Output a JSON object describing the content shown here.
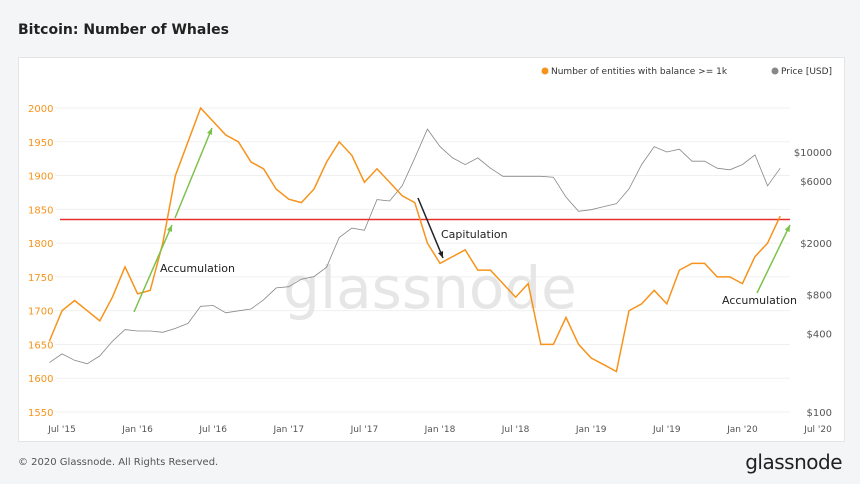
{
  "title": "Bitcoin: Number of Whales",
  "footer": "© 2020 Glassnode. All Rights Reserved.",
  "brand": "glassnode",
  "watermark": "glassnode",
  "colors": {
    "whales": "#f7931a",
    "price": "#888888",
    "threshold": "#e8302a",
    "arrow_green": "#7cc24a",
    "arrow_black": "#222222"
  },
  "chart_data": {
    "type": "line",
    "title": "Bitcoin: Number of Whales",
    "legend": {
      "placement": "top-right",
      "entries": [
        "Number of entities with balance >= 1k",
        "Price [USD]"
      ]
    },
    "x_ticks": [
      "Jul '15",
      "Jan '16",
      "Jul '16",
      "Jan '17",
      "Jul '17",
      "Jan '18",
      "Jul '18",
      "Jan '19",
      "Jul '19",
      "Jan '20",
      "Jul '20"
    ],
    "y_left": {
      "ticks": [
        1550,
        1600,
        1650,
        1700,
        1750,
        1800,
        1850,
        1900,
        1950,
        2000
      ],
      "range": [
        1530,
        2030
      ]
    },
    "y_right": {
      "scale": "log",
      "ticks": [
        "$100",
        "$400",
        "$800",
        "$2000",
        "$6000",
        "$10000"
      ],
      "tick_values": [
        100,
        400,
        800,
        2000,
        6000,
        10000
      ]
    },
    "grid": true,
    "x_months": [
      "2015-06",
      "2015-07",
      "2015-08",
      "2015-09",
      "2015-10",
      "2015-11",
      "2015-12",
      "2016-01",
      "2016-02",
      "2016-03",
      "2016-04",
      "2016-05",
      "2016-06",
      "2016-07",
      "2016-08",
      "2016-09",
      "2016-10",
      "2016-11",
      "2016-12",
      "2017-01",
      "2017-02",
      "2017-03",
      "2017-04",
      "2017-05",
      "2017-06",
      "2017-07",
      "2017-08",
      "2017-09",
      "2017-10",
      "2017-11",
      "2017-12",
      "2018-01",
      "2018-02",
      "2018-03",
      "2018-04",
      "2018-05",
      "2018-06",
      "2018-07",
      "2018-08",
      "2018-09",
      "2018-10",
      "2018-11",
      "2018-12",
      "2019-01",
      "2019-02",
      "2019-03",
      "2019-04",
      "2019-05",
      "2019-06",
      "2019-07",
      "2019-08",
      "2019-09",
      "2019-10",
      "2019-11",
      "2019-12",
      "2020-01",
      "2020-02",
      "2020-03",
      "2020-04"
    ],
    "series": [
      {
        "name": "Number of entities with balance >= 1k",
        "axis": "left",
        "values": [
          1655,
          1700,
          1715,
          1700,
          1685,
          1720,
          1765,
          1725,
          1730,
          1800,
          1900,
          1950,
          2000,
          1980,
          1960,
          1950,
          1920,
          1910,
          1880,
          1865,
          1860,
          1880,
          1920,
          1950,
          1930,
          1890,
          1910,
          1890,
          1870,
          1860,
          1800,
          1770,
          1780,
          1790,
          1760,
          1760,
          1740,
          1720,
          1740,
          1650,
          1650,
          1690,
          1650,
          1630,
          1620,
          1610,
          1700,
          1710,
          1730,
          1710,
          1760,
          1770,
          1770,
          1750,
          1750,
          1740,
          1780,
          1800,
          1840
        ]
      },
      {
        "name": "Price [USD]",
        "axis": "right",
        "values": [
          240,
          280,
          250,
          235,
          270,
          350,
          430,
          420,
          420,
          410,
          440,
          480,
          650,
          660,
          580,
          600,
          620,
          730,
          900,
          920,
          1050,
          1100,
          1300,
          2200,
          2600,
          2500,
          4300,
          4200,
          5500,
          9000,
          15000,
          11000,
          9000,
          8000,
          9000,
          7500,
          6500,
          6500,
          6500,
          6500,
          6400,
          4500,
          3500,
          3600,
          3800,
          4000,
          5200,
          8000,
          11000,
          10000,
          10500,
          8500,
          8500,
          7500,
          7300,
          8000,
          9500,
          5500,
          7500
        ]
      }
    ],
    "reference_line": {
      "value": 1835,
      "axis": "left"
    },
    "annotations": [
      {
        "text": "Accumulation"
      },
      {
        "text": "Capitulation"
      },
      {
        "text": "Accumulation"
      }
    ]
  }
}
